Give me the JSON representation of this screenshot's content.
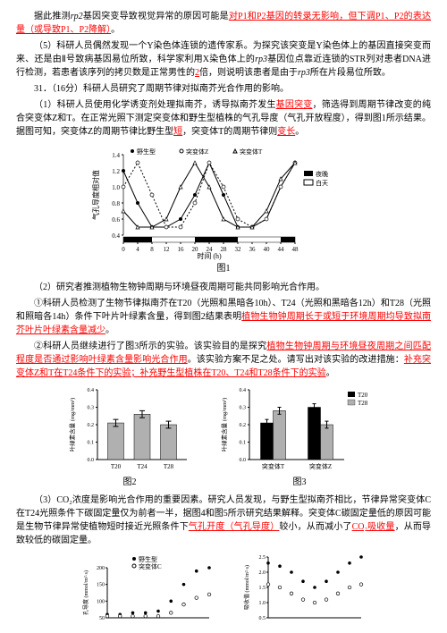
{
  "p1_a": "据此推测",
  "p1_i": "rp2",
  "p1_b": "基因突变导致视觉异常的原因可能是",
  "p1_ans": "对P1和P2基因的转录无影响，但下调P1、P2的表达量（或导致P1、P2降解）",
  "p1_c": "。",
  "p2_a": "（5）科研人员偶然发现一个Y染色体连锁的遗传家系。为探究该突变是Y染色体上的基因直接突变而来、还是由Ⅱ号致病基因易位所致，科学家利用X染色体上的",
  "p2_i": "rp3",
  "p2_b": "基因位点靠近连锁的STR列对患者DNA进行检测，若患者该序列的拷贝数是正常男性的",
  "p2_ans": "2",
  "p2_c": "倍，则说明该患者是由于",
  "p2_i2": "rp3",
  "p2_d": "所在片段易位所致。",
  "p3": "31．（16分）科研人员研究了周期节律对拟南芥光合作用的影响。",
  "p4_a": "（1）科研人员使用化学诱变剂处理拟南芥，诱导拟南芥发生",
  "p4_ans1": "基因突变",
  "p4_b": "，筛选得到周期节律改变的纯合突变体Z和T。在正常光照下测定突变体和野生型植株的气孔导度（气孔开放程度），得到图1所示结果。据图可知，突变体Z的周期节律比野生型",
  "p4_ans2": "短",
  "p4_c": "，突变体T的周期节律则",
  "p4_ans3": "变长",
  "p4_d": "。",
  "fig1": {
    "xlabel": "时间 (h)",
    "ylabel": "气孔导度相对值",
    "xticks": [
      0,
      4,
      8,
      12,
      16,
      20,
      24,
      28,
      32,
      36,
      40,
      44,
      48
    ],
    "yticks": [
      0.4,
      0.6,
      0.8,
      1.0,
      1.2,
      1.4
    ],
    "xlim": [
      0,
      48
    ],
    "ylim": [
      0.4,
      1.4
    ],
    "legend": [
      "野生型",
      "突变体Z",
      "突变体T"
    ],
    "bar_legend": [
      "夜晚",
      "白天"
    ],
    "wt_x": [
      0,
      4,
      8,
      12,
      16,
      20,
      24,
      28,
      32,
      36,
      40,
      44,
      48
    ],
    "wt_y": [
      1.2,
      0.8,
      0.5,
      0.5,
      0.6,
      0.9,
      1.3,
      0.9,
      0.5,
      0.5,
      0.6,
      1.0,
      1.3
    ],
    "z_x": [
      0,
      4,
      8,
      12,
      16,
      20,
      24,
      28,
      32,
      36,
      40,
      44,
      48
    ],
    "z_y": [
      1.0,
      1.3,
      0.9,
      0.5,
      0.5,
      0.8,
      1.3,
      1.0,
      0.6,
      0.5,
      0.6,
      1.0,
      1.3
    ],
    "t_x": [
      0,
      4,
      8,
      12,
      16,
      20,
      24,
      28,
      32,
      36,
      40,
      44,
      48
    ],
    "t_y": [
      0.7,
      0.5,
      0.5,
      0.6,
      1.0,
      1.3,
      1.0,
      0.6,
      0.5,
      0.5,
      0.7,
      1.1,
      1.3
    ],
    "night_bands": [
      [
        0,
        8
      ],
      [
        20,
        32
      ],
      [
        44,
        48
      ]
    ],
    "colors": {
      "line": "#000000",
      "bg": "#ffffff",
      "night": "#000000",
      "day": "#ffffff",
      "grid": "#000000"
    }
  },
  "fig1_label": "图1",
  "p5_a": "（2）研究者推测植物生物钟周期与环境昼夜周期可能共同影响光合作用。",
  "p6_a": "①科研人员检测了生物节律拟南芥在T20（光照和黑暗各10h）、T24（光照和黑暗各12h）和T28（光照和照暗各14h）条件下叶片",
  "p6_b": "叶绿素含量",
  "p6_c": "，得到图2结果表明",
  "p6_ans": "植物生物钟周期长于或短于环境周期均导致拟南芥叶片叶绿素含量减少",
  "p6_d": "。",
  "p7_a": "②科研人员继续进行了图3所示的实验。该实验目的是探究",
  "p7_ans1": "植物生物钟周期与环境昼夜周期之间匹配程度是否通过影响叶绿素含量影响光合作用",
  "p7_b": "。该实验方案不足之处。请写出对该实验的改进措施：",
  "p7_ans2": "补充突变体Z和T在T24条件下的实验；补充野生型植株在T20、T24和T28条件下的实验",
  "p7_c": "。",
  "fig2": {
    "ylabel": "叶绿素含量 (mg/mm²)",
    "categories": [
      "T20",
      "T24",
      "T28"
    ],
    "values": [
      0.21,
      0.26,
      0.2
    ],
    "errors": [
      0.02,
      0.02,
      0.02
    ],
    "ylim": [
      0,
      0.4
    ],
    "yticks": [
      0,
      0.1,
      0.2,
      0.3,
      0.4
    ],
    "bar_color": "#b0b0b0",
    "bg": "#ffffff"
  },
  "fig2_label": "图2",
  "fig3": {
    "ylabel": "叶绿素含量 (mg/mm²)",
    "categories": [
      "突变体T",
      "突变体Z"
    ],
    "series": [
      "T20",
      "T28"
    ],
    "values": [
      [
        0.21,
        0.28
      ],
      [
        0.3,
        0.2
      ]
    ],
    "errors": [
      [
        0.02,
        0.02
      ],
      [
        0.02,
        0.02
      ]
    ],
    "ylim": [
      0,
      0.4
    ],
    "yticks": [
      0,
      0.1,
      0.2,
      0.3,
      0.4
    ],
    "colors": [
      "#000000",
      "#b0b0b0"
    ],
    "bg": "#ffffff"
  },
  "fig3_label": "图3",
  "p8_a": "（3）CO₂浓度是影响光合作用的重要因素。研究人员发现，与野生型拟南芥相比，节律异常突变体C在T24光照条件下碳固定量仅为前者一半，据图4和图5所示研究结果解释。突变体C碳固定量低的原因可能是生物节律异常使植物短时接近光照条件下",
  "p8_ans1": "气孔开度（气孔导度）",
  "p8_b": "较小，从而减小了",
  "p8_ans2": "CO₂吸收量",
  "p8_c": "，从而导致较低的碳固定量。",
  "fig4": {
    "ylabel": "孔导度 (mmol/m²·s)",
    "legend": [
      "野生型",
      "突变体C"
    ],
    "wt_y": [
      60,
      60,
      65,
      65,
      70,
      100,
      150,
      190,
      200
    ],
    "mc_y": [
      55,
      55,
      55,
      55,
      55,
      65,
      90,
      110,
      120
    ],
    "ylim": [
      50,
      200
    ],
    "yticks": [
      50,
      100,
      150,
      200
    ],
    "colors": {
      "wt": "#000000",
      "mc": "#888888"
    }
  },
  "fig5": {
    "ylabel": "吸收值 (mmol/m²·s)",
    "wt_y": [
      2.3,
      2.2,
      2.0,
      1.7,
      1.5,
      1.7,
      2.0,
      2.3,
      2.5
    ],
    "mc_y": [
      1.6,
      1.5,
      1.3,
      1.1,
      1.0,
      1.1,
      1.3,
      1.5,
      1.6
    ],
    "ylim": [
      0.5,
      2.5
    ],
    "yticks": [
      0.5,
      1.0,
      1.5,
      2.0,
      2.5
    ],
    "colors": {
      "wt": "#000000",
      "mc": "#888888"
    }
  }
}
